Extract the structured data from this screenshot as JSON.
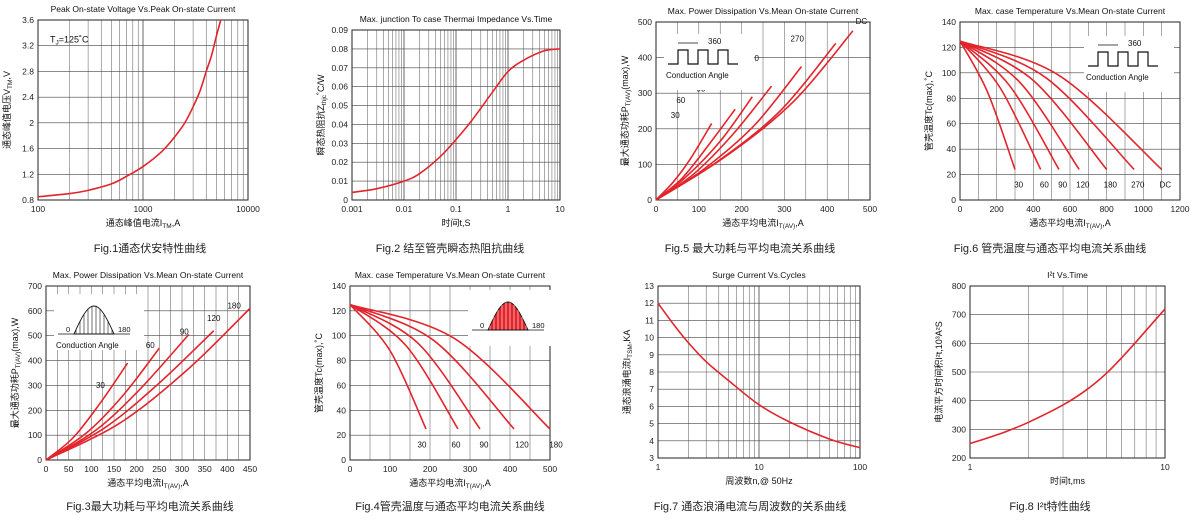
{
  "accent": "#e3242b",
  "chart_data": [
    {
      "id": "fig1",
      "type": "line",
      "title": "Peak On-state Voltage Vs.Peak On-state Current",
      "caption": "Fig.1通态伏安特性曲线",
      "xlabel": "通态峰值电流I",
      "xlabel_sub": "TM",
      "xlabel_tail": ",A",
      "ylabel": "通态峰值电压V",
      "ylabel_sub": "TM",
      "ylabel_tail": ",V",
      "xscale": "log",
      "xlim": [
        100,
        10000
      ],
      "xticks": [
        100,
        1000,
        10000
      ],
      "xtick_labels": [
        "100",
        "1000",
        "10000"
      ],
      "ylim": [
        0.8,
        3.6
      ],
      "yticks": [
        0.8,
        1.2,
        1.6,
        2,
        2.4,
        2.8,
        3.2,
        3.6
      ],
      "ytick_labels": [
        "0.8",
        "1.2",
        "1.6",
        "2",
        "2.4",
        "2.8",
        "3.2",
        "3.6"
      ],
      "annotations": [
        {
          "text": "T",
          "sub": "J",
          "tail": "=125˚C",
          "x": 130,
          "y": 3.25
        }
      ],
      "series": [
        {
          "x": [
            100,
            200,
            300,
            500,
            700,
            1000,
            1500,
            2000,
            2500,
            3000,
            3500,
            4000,
            4500,
            5000,
            5500
          ],
          "y": [
            0.85,
            0.9,
            0.95,
            1.05,
            1.17,
            1.32,
            1.55,
            1.78,
            2.0,
            2.25,
            2.5,
            2.8,
            3.05,
            3.35,
            3.6
          ]
        }
      ]
    },
    {
      "id": "fig2",
      "type": "line",
      "title": "Max. junction To case Thermai Impedance Vs.Time",
      "caption": "Fig.2 结至管壳瞬态热阻抗曲线",
      "xlabel": "时间t,S",
      "xlabel_sub": "",
      "xlabel_tail": "",
      "ylabel": "瞬态热阻抗Z",
      "ylabel_sub": "thjc",
      "ylabel_tail": "˚C/W",
      "xscale": "log",
      "xlim": [
        0.001,
        10
      ],
      "xticks": [
        0.001,
        0.01,
        0.1,
        1,
        10
      ],
      "xtick_labels": [
        "0.001",
        "0.01",
        "0.1",
        "1",
        "10"
      ],
      "ylim": [
        0,
        0.09
      ],
      "yticks": [
        0,
        0.01,
        0.02,
        0.03,
        0.04,
        0.05,
        0.06,
        0.07,
        0.08,
        0.09
      ],
      "ytick_labels": [
        "0",
        "0.01",
        "0.02",
        "0.03",
        "0.04",
        "0.05",
        "0.06",
        "0.07",
        "0.08",
        "0.09"
      ],
      "series": [
        {
          "x": [
            0.001,
            0.003,
            0.01,
            0.02,
            0.05,
            0.1,
            0.2,
            0.5,
            1,
            2,
            5,
            10
          ],
          "y": [
            0.004,
            0.006,
            0.01,
            0.014,
            0.023,
            0.032,
            0.042,
            0.057,
            0.068,
            0.074,
            0.079,
            0.08
          ]
        }
      ]
    },
    {
      "id": "fig5",
      "type": "line",
      "title": "Max. Power Dissipation Vs.Mean On-state Current",
      "caption": "Fig.5 最大功耗与平均电流关系曲线",
      "xlabel": "通态平均电流I",
      "xlabel_sub": "T(AV)",
      "xlabel_tail": ",A",
      "ylabel": "最大通态功耗P",
      "ylabel_sub": "T(AV)",
      "ylabel_tail": "(max),W",
      "xscale": "linear",
      "xlim": [
        0,
        500
      ],
      "xticks": [
        0,
        100,
        200,
        300,
        400,
        500
      ],
      "xtick_labels": [
        "0",
        "100",
        "200",
        "300",
        "400",
        "500"
      ],
      "ylim": [
        0,
        500
      ],
      "yticks": [
        0,
        100,
        200,
        300,
        400,
        500
      ],
      "ytick_labels": [
        "0",
        "100",
        "200",
        "300",
        "400",
        "500"
      ],
      "inset": {
        "kind": "square",
        "angle": "360",
        "label": "Conduction Angle"
      },
      "series": [
        {
          "name": "30",
          "x": [
            0,
            40,
            80,
            130
          ],
          "y": [
            0,
            50,
            115,
            215
          ]
        },
        {
          "name": "60",
          "x": [
            0,
            60,
            120,
            185
          ],
          "y": [
            0,
            60,
            150,
            255
          ]
        },
        {
          "name": "90",
          "x": [
            0,
            70,
            150,
            225
          ],
          "y": [
            0,
            65,
            165,
            290
          ]
        },
        {
          "name": "120",
          "x": [
            0,
            90,
            180,
            270
          ],
          "y": [
            0,
            75,
            185,
            320
          ]
        },
        {
          "name": "180",
          "x": [
            0,
            110,
            230,
            340
          ],
          "y": [
            0,
            85,
            210,
            375
          ]
        },
        {
          "name": "270",
          "x": [
            0,
            140,
            290,
            420
          ],
          "y": [
            0,
            105,
            250,
            440
          ]
        },
        {
          "name": "DC",
          "x": [
            0,
            160,
            320,
            460
          ],
          "y": [
            0,
            120,
            275,
            475
          ]
        }
      ],
      "series_label_pos": [
        [
          45,
          230
        ],
        [
          58,
          272
        ],
        [
          105,
          305
        ],
        [
          160,
          348
        ],
        [
          225,
          390
        ],
        [
          330,
          445
        ],
        [
          480,
          495
        ]
      ]
    },
    {
      "id": "fig6",
      "type": "line",
      "title": "Max. case Temperature Vs.Mean On-state Current",
      "caption": "Fig.6 管壳温度与通态平均电流关系曲线",
      "xlabel": "通态平均电流I",
      "xlabel_sub": "T(AV)",
      "xlabel_tail": ",A",
      "ylabel": "管壳温度Tc(max),˚C",
      "ylabel_sub": "",
      "ylabel_tail": "",
      "xscale": "linear",
      "xlim": [
        0,
        1200
      ],
      "xticks": [
        0,
        200,
        400,
        600,
        800,
        1000,
        1200
      ],
      "xtick_labels": [
        "0",
        "200",
        "400",
        "600",
        "800",
        "1000",
        "1200"
      ],
      "ylim": [
        0,
        140
      ],
      "yticks": [
        0,
        20,
        40,
        60,
        80,
        100,
        120,
        140
      ],
      "ytick_labels": [
        "0",
        "20",
        "40",
        "60",
        "80",
        "100",
        "120",
        "140"
      ],
      "inset": {
        "kind": "square",
        "angle": "360",
        "label": "Conduction Angle"
      },
      "series": [
        {
          "name": "30",
          "x": [
            0,
            150,
            300
          ],
          "y": [
            125,
            85,
            24
          ]
        },
        {
          "name": "60",
          "x": [
            0,
            220,
            440
          ],
          "y": [
            125,
            88,
            24
          ]
        },
        {
          "name": "90",
          "x": [
            0,
            270,
            540
          ],
          "y": [
            125,
            90,
            24
          ]
        },
        {
          "name": "120",
          "x": [
            0,
            330,
            650
          ],
          "y": [
            125,
            92,
            24
          ]
        },
        {
          "name": "180",
          "x": [
            0,
            400,
            800
          ],
          "y": [
            125,
            94,
            24
          ]
        },
        {
          "name": "270",
          "x": [
            0,
            470,
            950
          ],
          "y": [
            125,
            96,
            24
          ]
        },
        {
          "name": "DC",
          "x": [
            0,
            540,
            1100
          ],
          "y": [
            125,
            98,
            24
          ]
        }
      ],
      "series_label_pos": [
        [
          320,
          10
        ],
        [
          460,
          10
        ],
        [
          560,
          10
        ],
        [
          670,
          10
        ],
        [
          820,
          10
        ],
        [
          970,
          10
        ],
        [
          1120,
          10
        ]
      ]
    },
    {
      "id": "fig3",
      "type": "line",
      "title": "Max. Power Dissipation Vs.Mean On-state Current",
      "caption": "Fig.3最大功耗与平均电流关系曲线",
      "xlabel": "通态平均电流I",
      "xlabel_sub": "T(AV)",
      "xlabel_tail": ",A",
      "ylabel": "最大通态功耗P",
      "ylabel_sub": "T(AV)",
      "ylabel_tail": "(max),W",
      "xscale": "linear",
      "xlim": [
        0,
        450
      ],
      "xticks": [
        0,
        50,
        100,
        150,
        200,
        250,
        300,
        350,
        400,
        450
      ],
      "xtick_labels": [
        "0",
        "50",
        "100",
        "150",
        "200",
        "250",
        "300",
        "350",
        "400",
        "450"
      ],
      "ylim": [
        0,
        700
      ],
      "yticks": [
        0,
        100,
        200,
        300,
        400,
        500,
        600,
        700
      ],
      "ytick_labels": [
        "0",
        "100",
        "200",
        "300",
        "400",
        "500",
        "600",
        "700"
      ],
      "inset": {
        "kind": "half-sine",
        "angle": "180",
        "start": "0",
        "label": "Conduction Angle"
      },
      "series": [
        {
          "name": "30",
          "x": [
            0,
            60,
            120,
            180
          ],
          "y": [
            0,
            90,
            230,
            390
          ]
        },
        {
          "name": "60",
          "x": [
            0,
            90,
            170,
            250
          ],
          "y": [
            0,
            110,
            260,
            450
          ]
        },
        {
          "name": "90",
          "x": [
            0,
            110,
            210,
            315
          ],
          "y": [
            0,
            120,
            290,
            505
          ]
        },
        {
          "name": "120",
          "x": [
            0,
            130,
            250,
            370
          ],
          "y": [
            0,
            130,
            310,
            520
          ]
        },
        {
          "name": "180",
          "x": [
            0,
            160,
            310,
            450
          ],
          "y": [
            0,
            145,
            360,
            610
          ]
        }
      ],
      "series_label_pos": [
        [
          120,
          290
        ],
        [
          230,
          450
        ],
        [
          305,
          505
        ],
        [
          370,
          560
        ],
        [
          415,
          610
        ]
      ]
    },
    {
      "id": "fig4",
      "type": "line",
      "title": "Max. case Temperature Vs.Mean On-state Current",
      "caption": "Fig.4管壳温度与通态平均电流关系曲线",
      "xlabel": "通态平均电流I",
      "xlabel_sub": "T(AV)",
      "xlabel_tail": ",A",
      "ylabel": "管壳温度Tc(max),˚C",
      "ylabel_sub": "",
      "ylabel_tail": "",
      "xscale": "linear",
      "xlim": [
        0,
        500
      ],
      "xticks": [
        0,
        100,
        200,
        300,
        400,
        500
      ],
      "xtick_labels": [
        "0",
        "100",
        "200",
        "300",
        "400",
        "500"
      ],
      "ylim": [
        0,
        140
      ],
      "yticks": [
        0,
        20,
        40,
        60,
        80,
        100,
        120,
        140
      ],
      "ytick_labels": [
        "0",
        "20",
        "40",
        "60",
        "80",
        "100",
        "120",
        "140"
      ],
      "inset": {
        "kind": "half-sine",
        "angle": "180",
        "start": "0",
        "label": ""
      },
      "series": [
        {
          "name": "30",
          "x": [
            0,
            100,
            190
          ],
          "y": [
            125,
            88,
            25
          ]
        },
        {
          "name": "60",
          "x": [
            0,
            140,
            270
          ],
          "y": [
            125,
            92,
            25
          ]
        },
        {
          "name": "90",
          "x": [
            0,
            170,
            325
          ],
          "y": [
            125,
            94,
            25
          ]
        },
        {
          "name": "120",
          "x": [
            0,
            210,
            410
          ],
          "y": [
            125,
            96,
            25
          ]
        },
        {
          "name": "180",
          "x": [
            0,
            260,
            500
          ],
          "y": [
            125,
            98,
            25
          ]
        }
      ],
      "series_label_pos": [
        [
          180,
          10
        ],
        [
          265,
          10
        ],
        [
          335,
          10
        ],
        [
          430,
          10
        ],
        [
          515,
          10
        ]
      ]
    },
    {
      "id": "fig7",
      "type": "line",
      "title": "Surge Current Vs.Cycles",
      "caption": "Fig.7 通态浪涌电流与周波数的关系曲线",
      "xlabel": "周波数n,@ 50Hz",
      "xlabel_sub": "",
      "xlabel_tail": "",
      "ylabel": "通态浪涌电流I",
      "ylabel_sub": "TSM",
      "ylabel_tail": ",KA",
      "xscale": "log",
      "xlim": [
        1,
        100
      ],
      "xticks": [
        1,
        10,
        100
      ],
      "xtick_labels": [
        "1",
        "10",
        "100"
      ],
      "ylim": [
        3,
        13
      ],
      "yticks": [
        3,
        4,
        5,
        6,
        7,
        8,
        9,
        10,
        11,
        12,
        13
      ],
      "ytick_labels": [
        "3",
        "4",
        "5",
        "6",
        "7",
        "8",
        "9",
        "10",
        "11",
        "12",
        "13"
      ],
      "series": [
        {
          "x": [
            1,
            1.5,
            2,
            3,
            5,
            10,
            20,
            50,
            100
          ],
          "y": [
            12,
            10.6,
            9.7,
            8.6,
            7.5,
            6.1,
            5.1,
            4.1,
            3.6
          ]
        }
      ]
    },
    {
      "id": "fig8",
      "type": "line",
      "title": "I²t  Vs.Time",
      "caption": "Fig.8 I²t特性曲线",
      "xlabel": "时间t,ms",
      "xlabel_sub": "",
      "xlabel_tail": "",
      "ylabel": "电流平方时间积I²t,10³A²S",
      "ylabel_sub": "",
      "ylabel_tail": "",
      "xscale": "log",
      "xlim": [
        1,
        10
      ],
      "xticks": [
        1,
        10
      ],
      "xtick_labels": [
        "1",
        "10"
      ],
      "ylim": [
        200,
        800
      ],
      "yticks": [
        200,
        300,
        400,
        500,
        600,
        700,
        800
      ],
      "ytick_labels": [
        "200",
        "300",
        "400",
        "500",
        "600",
        "700",
        "800"
      ],
      "series": [
        {
          "x": [
            1,
            1.5,
            2,
            3,
            4,
            5,
            6,
            7,
            8,
            10
          ],
          "y": [
            250,
            290,
            325,
            385,
            440,
            495,
            550,
            600,
            645,
            720
          ]
        }
      ]
    }
  ]
}
